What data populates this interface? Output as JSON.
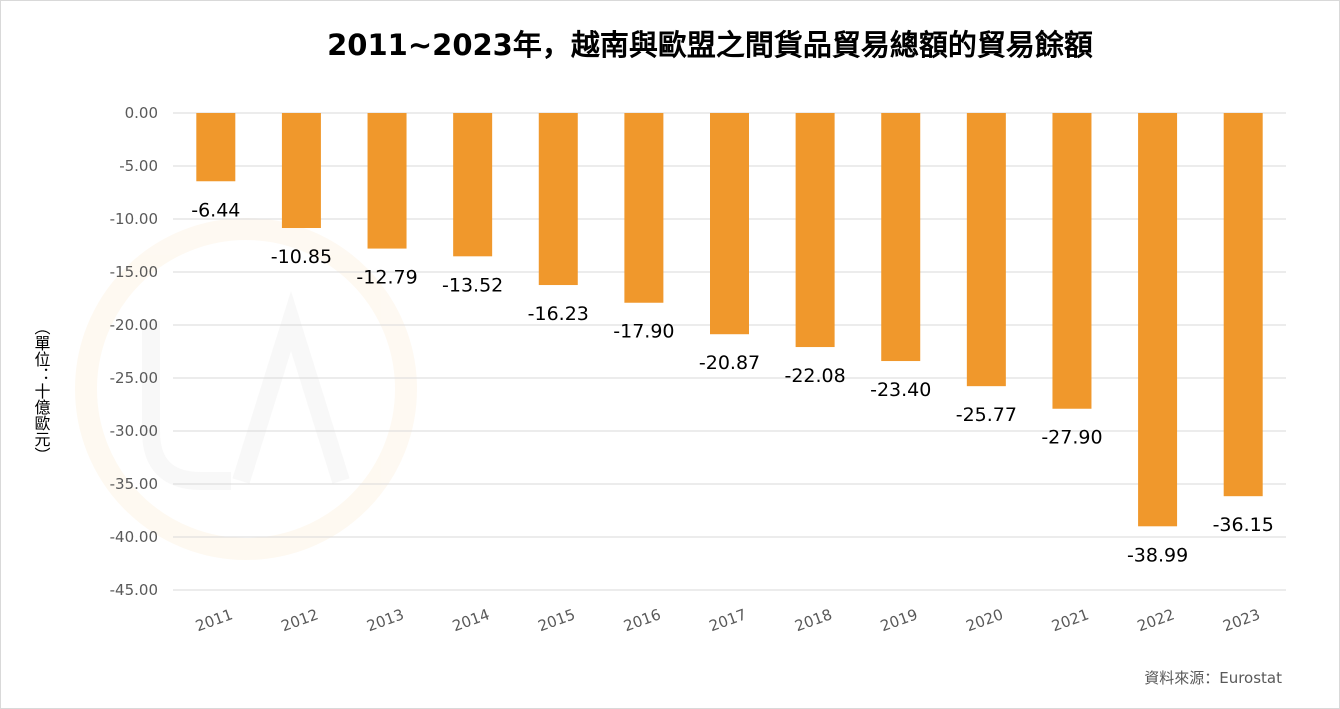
{
  "source": "資料來源：Eurostat",
  "colors": {
    "bar": "#f0982c",
    "grid": "#d9d9d9",
    "axis_text": "#595959"
  },
  "chart_data": {
    "type": "bar",
    "title": "2011~2023年，越南與歐盟之間貨品貿易總額的貿易餘額",
    "ylabel": "（單位：十億歐元）",
    "xlabel": "",
    "categories": [
      "2011",
      "2012",
      "2013",
      "2014",
      "2015",
      "2016",
      "2017",
      "2018",
      "2019",
      "2020",
      "2021",
      "2022",
      "2023"
    ],
    "values": [
      -6.44,
      -10.85,
      -12.79,
      -13.52,
      -16.23,
      -17.9,
      -20.87,
      -22.08,
      -23.4,
      -25.77,
      -27.9,
      -38.99,
      -36.15
    ],
    "data_labels": [
      "-6.44",
      "-10.85",
      "-12.79",
      "-13.52",
      "-16.23",
      "-17.90",
      "-20.87",
      "-22.08",
      "-23.40",
      "-25.77",
      "-27.90",
      "-38.99",
      "-36.15"
    ],
    "ylim": [
      -45,
      0
    ],
    "yticks": [
      "0.00",
      "-5.00",
      "-10.00",
      "-15.00",
      "-20.00",
      "-25.00",
      "-30.00",
      "-35.00",
      "-40.00",
      "-45.00"
    ],
    "grid": true,
    "legend": "none"
  }
}
